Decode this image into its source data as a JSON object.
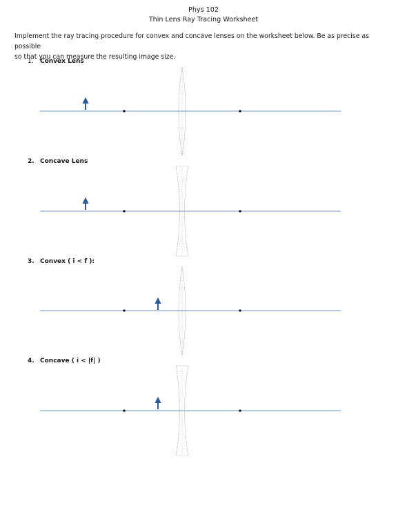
{
  "header": {
    "course": "Phys 102",
    "title": "Thin Lens Ray Tracing Worksheet"
  },
  "instructions": {
    "line1": "Implement the ray tracing procedure for convex and concave lenses on the worksheet below. Be as precise as possible",
    "line2": "so that you can measure the resulting image size."
  },
  "problems": [
    {
      "number": "1.",
      "label": "Convex Lens",
      "lens": "convex"
    },
    {
      "number": "2.",
      "label": "Concave Lens",
      "lens": "concave"
    },
    {
      "number": "3.",
      "label": "Convex ( i < f ):",
      "lens": "convex"
    },
    {
      "number": "4.",
      "label": "Concave ( i < |f| )",
      "lens": "concave"
    }
  ],
  "colors": {
    "axis": "#6f95c4",
    "arrow": "#2c5aa0",
    "lens_outline": "#9a9a9a",
    "focal_point": "#000000"
  }
}
